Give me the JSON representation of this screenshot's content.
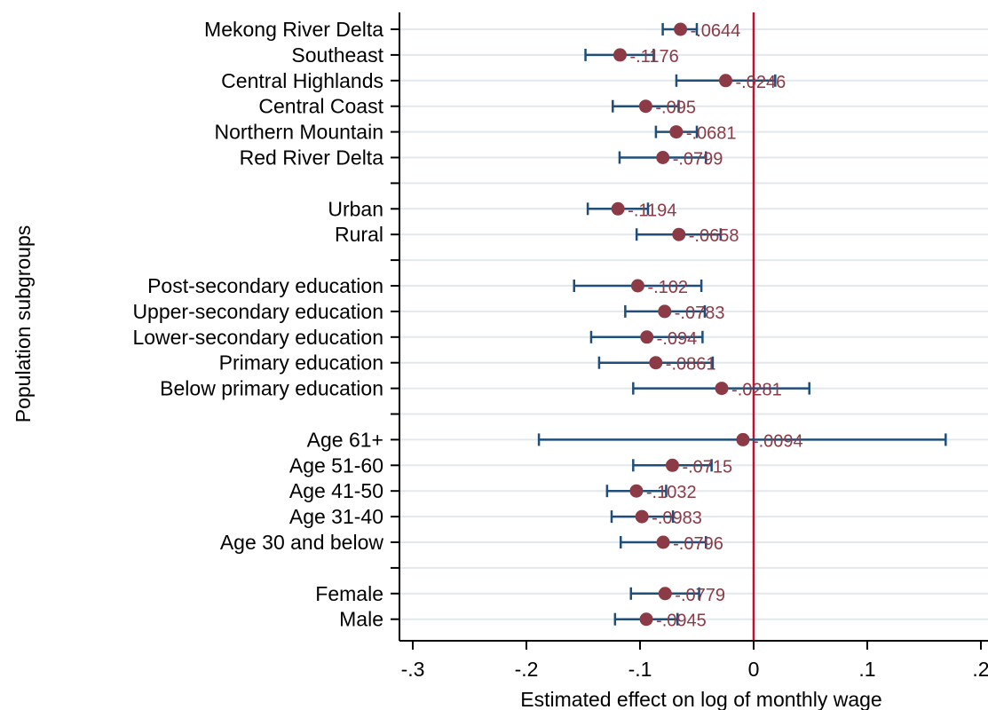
{
  "chart_data": {
    "type": "scatter",
    "xlabel": "Estimated effect on log of monthly wage",
    "ylabel": "Population subgroups",
    "xlim": [
      -0.3,
      0.2
    ],
    "x_ticks": [
      -0.3,
      -0.2,
      -0.1,
      0,
      0.1,
      0.2
    ],
    "x_tick_labels": [
      "-.3",
      "-.2",
      "-.1",
      "0",
      ".1",
      ".2"
    ],
    "reference_line": 0,
    "grid": true,
    "rows": [
      {
        "label": "Mekong River Delta",
        "estimate": -0.0644,
        "value_label": "-.0644",
        "ci_low": -0.08,
        "ci_high": -0.05
      },
      {
        "label": "Southeast",
        "estimate": -0.1176,
        "value_label": "-.1176",
        "ci_low": -0.148,
        "ci_high": -0.088
      },
      {
        "label": "Central Highlands",
        "estimate": -0.0246,
        "value_label": "-.0246",
        "ci_low": -0.068,
        "ci_high": 0.019
      },
      {
        "label": "Central Coast",
        "estimate": -0.095,
        "value_label": "-.095",
        "ci_low": -0.124,
        "ci_high": -0.066
      },
      {
        "label": "Northern Mountain",
        "estimate": -0.0681,
        "value_label": "-.0681",
        "ci_low": -0.086,
        "ci_high": -0.05
      },
      {
        "label": "Red River Delta",
        "estimate": -0.0799,
        "value_label": "-.0799",
        "ci_low": -0.118,
        "ci_high": -0.042
      },
      {
        "label": "",
        "gap": true
      },
      {
        "label": "Urban",
        "estimate": -0.1194,
        "value_label": "-.1194",
        "ci_low": -0.146,
        "ci_high": -0.093
      },
      {
        "label": "Rural",
        "estimate": -0.0658,
        "value_label": "-.0658",
        "ci_low": -0.103,
        "ci_high": -0.029
      },
      {
        "label": "",
        "gap": true
      },
      {
        "label": "Post-secondary education",
        "estimate": -0.102,
        "value_label": "-.102",
        "ci_low": -0.158,
        "ci_high": -0.046
      },
      {
        "label": "Upper-secondary education",
        "estimate": -0.0783,
        "value_label": "-.0783",
        "ci_low": -0.113,
        "ci_high": -0.043
      },
      {
        "label": "Lower-secondary education",
        "estimate": -0.094,
        "value_label": "-.094",
        "ci_low": -0.143,
        "ci_high": -0.045
      },
      {
        "label": "Primary education",
        "estimate": -0.0861,
        "value_label": "-.0861",
        "ci_low": -0.136,
        "ci_high": -0.036
      },
      {
        "label": "Below primary education",
        "estimate": -0.0281,
        "value_label": "-.0281",
        "ci_low": -0.106,
        "ci_high": 0.049
      },
      {
        "label": "",
        "gap": true
      },
      {
        "label": "Age 61+",
        "estimate": -0.0094,
        "value_label": "-.0094",
        "ci_low": -0.189,
        "ci_high": 0.169
      },
      {
        "label": "Age 51-60",
        "estimate": -0.0715,
        "value_label": "-.0715",
        "ci_low": -0.106,
        "ci_high": -0.037
      },
      {
        "label": "Age 41-50",
        "estimate": -0.1032,
        "value_label": "-.1032",
        "ci_low": -0.129,
        "ci_high": -0.077
      },
      {
        "label": "Age 31-40",
        "estimate": -0.0983,
        "value_label": "-.0983",
        "ci_low": -0.125,
        "ci_high": -0.071
      },
      {
        "label": "Age 30 and below",
        "estimate": -0.0796,
        "value_label": "-.0796",
        "ci_low": -0.117,
        "ci_high": -0.042
      },
      {
        "label": "",
        "gap": true
      },
      {
        "label": "Female",
        "estimate": -0.0779,
        "value_label": "-.0779",
        "ci_low": -0.108,
        "ci_high": -0.048
      },
      {
        "label": "Male",
        "estimate": -0.0945,
        "value_label": "-.0945",
        "ci_low": -0.122,
        "ci_high": -0.067
      }
    ],
    "colors": {
      "marker": "#8b3a46",
      "ci_line": "#1f4e79",
      "reference_line": "#c0102d",
      "value_label": "#8b3a46",
      "grid": "#e1e9ee",
      "axis": "#000000"
    }
  }
}
